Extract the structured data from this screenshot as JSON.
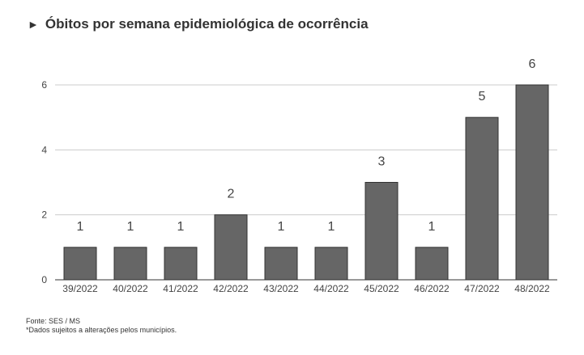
{
  "title_marker": "►",
  "chart_data": {
    "type": "bar",
    "title": "Óbitos por semana epidemiológica de ocorrência",
    "categories": [
      "39/2022",
      "40/2022",
      "41/2022",
      "42/2022",
      "43/2022",
      "44/2022",
      "45/2022",
      "46/2022",
      "47/2022",
      "48/2022"
    ],
    "values": [
      1,
      1,
      1,
      2,
      1,
      1,
      3,
      1,
      5,
      6
    ],
    "ylim": [
      0,
      6
    ],
    "yticks": [
      0,
      2,
      4,
      6
    ],
    "grid": true,
    "data_labels": true,
    "bar_color": "#666666",
    "grid_color": "#cccccc"
  },
  "footer": {
    "source": "Fonte: SES / MS",
    "note": "*Dados sujeitos a alterações pelos municípios."
  }
}
